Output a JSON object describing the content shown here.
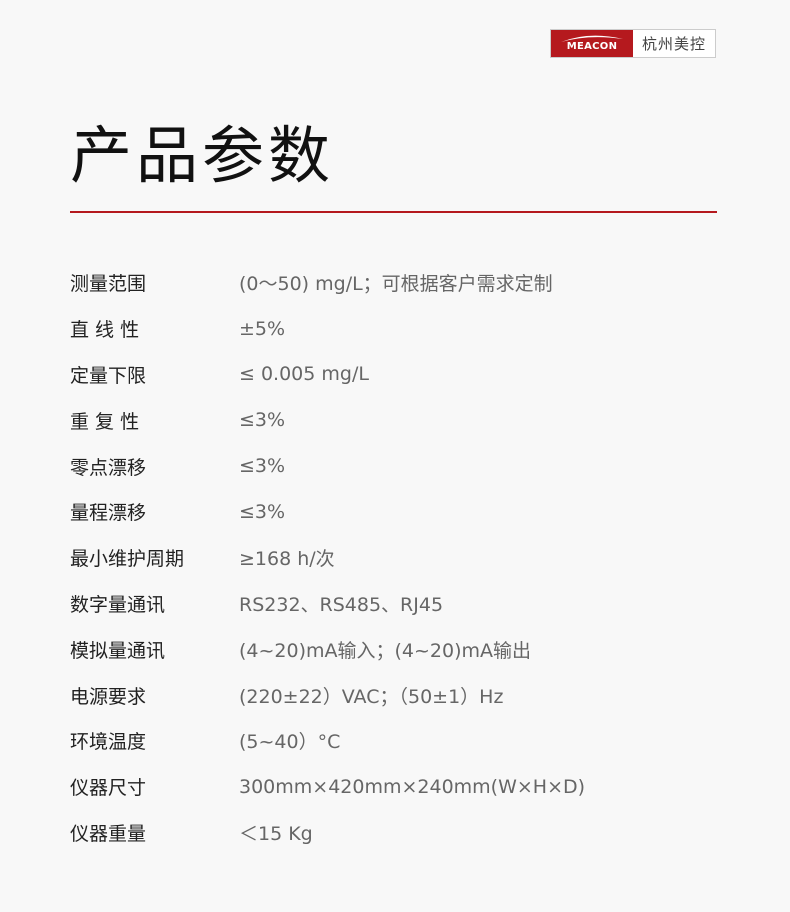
{
  "logo": {
    "brand": "MEACON",
    "company": "杭州美控",
    "color": "#b5191e"
  },
  "title": "产品参数",
  "accent": "#b5191e",
  "params": [
    {
      "label": "测量范围",
      "value": "(0～50) mg/L；可根据客户需求定制"
    },
    {
      "label": "直 线 性",
      "value": "±5%"
    },
    {
      "label": "定量下限",
      "value": "≤ 0.005 mg/L"
    },
    {
      "label": "重 复 性",
      "value": "≤3%"
    },
    {
      "label": "零点漂移",
      "value": "≤3%"
    },
    {
      "label": "量程漂移",
      "value": "≤3%"
    },
    {
      "label": "最小维护周期",
      "value": "≥168 h/次"
    },
    {
      "label": "数字量通讯",
      "value": "RS232、RS485、RJ45"
    },
    {
      "label": "模拟量通讯",
      "value": "(4~20)mA输入；(4~20)mA输出"
    },
    {
      "label": "电源要求",
      "value": "(220±22）VAC；（50±1）Hz"
    },
    {
      "label": "环境温度",
      "value": "(5~40）°C"
    },
    {
      "label": "仪器尺寸",
      "value": "300mm×420mm×240mm(W×H×D)"
    },
    {
      "label": "仪器重量",
      "value": "＜15 Kg"
    }
  ]
}
